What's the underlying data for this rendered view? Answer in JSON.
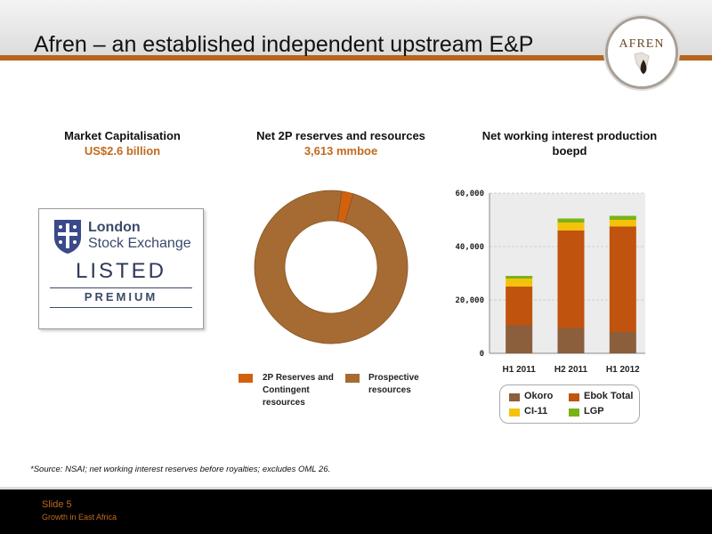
{
  "header": {
    "title": "Afren – an established independent upstream E&P",
    "logo_text": "AFREN"
  },
  "market_cap": {
    "title": "Market Capitalisation",
    "value": "US$2.6  billion"
  },
  "lse_badge": {
    "name_line1": "London",
    "name_line2": "Stock Exchange",
    "listed": "LISTED",
    "premium": "PREMIUM"
  },
  "reserves": {
    "title": "Net 2P reserves and resources",
    "value": "3,613 mmboe"
  },
  "production": {
    "title": "Net working interest production",
    "unit": "boepd"
  },
  "colors": {
    "accent_orange": "#c06a1e",
    "band_brown": "#b5651d",
    "okoro": "#8b5e3c",
    "ebok_total": "#c0530e",
    "ci11": "#f4c20d",
    "lgp": "#7ab317",
    "reserves_2p": "#d2600f",
    "prospective": "#a56b32"
  },
  "chart_data": [
    {
      "type": "pie",
      "subtype": "donut",
      "labels": [
        "2P Reserves and Contingent resources",
        "Prospective resources"
      ],
      "legend_lines": [
        [
          "2P Reserves and",
          "Contingent",
          "resources"
        ],
        [
          "Prospective",
          "resources"
        ]
      ],
      "values": [
        2.5,
        97.5
      ],
      "colors": [
        "#d2600f",
        "#a56b32"
      ],
      "legend_position": "bottom"
    },
    {
      "type": "bar",
      "stacked": true,
      "categories": [
        "H1 2011",
        "H2 2011",
        "H1 2012"
      ],
      "series": [
        {
          "name": "Okoro",
          "color": "#8b5e3c",
          "values": [
            10500,
            9500,
            8000
          ]
        },
        {
          "name": "Ebok Total",
          "color": "#c0530e",
          "values": [
            14500,
            36500,
            39500
          ]
        },
        {
          "name": "CI-11",
          "color": "#f4c20d",
          "values": [
            3000,
            3000,
            2500
          ]
        },
        {
          "name": "LGP",
          "color": "#7ab317",
          "values": [
            1000,
            1500,
            1500
          ]
        }
      ],
      "ylim": [
        0,
        60000
      ],
      "yticks": [
        "0",
        "20,000",
        "40,000",
        "60,000"
      ],
      "ytick_values": [
        0,
        20000,
        40000,
        60000
      ],
      "grid": true,
      "legend_position": "bottom"
    }
  ],
  "footnote": "*Source: NSAI; net working interest reserves before royalties;  excludes OML 26.",
  "footer": {
    "slide_label": "Slide 5",
    "subtitle": "Growth in East Africa"
  }
}
